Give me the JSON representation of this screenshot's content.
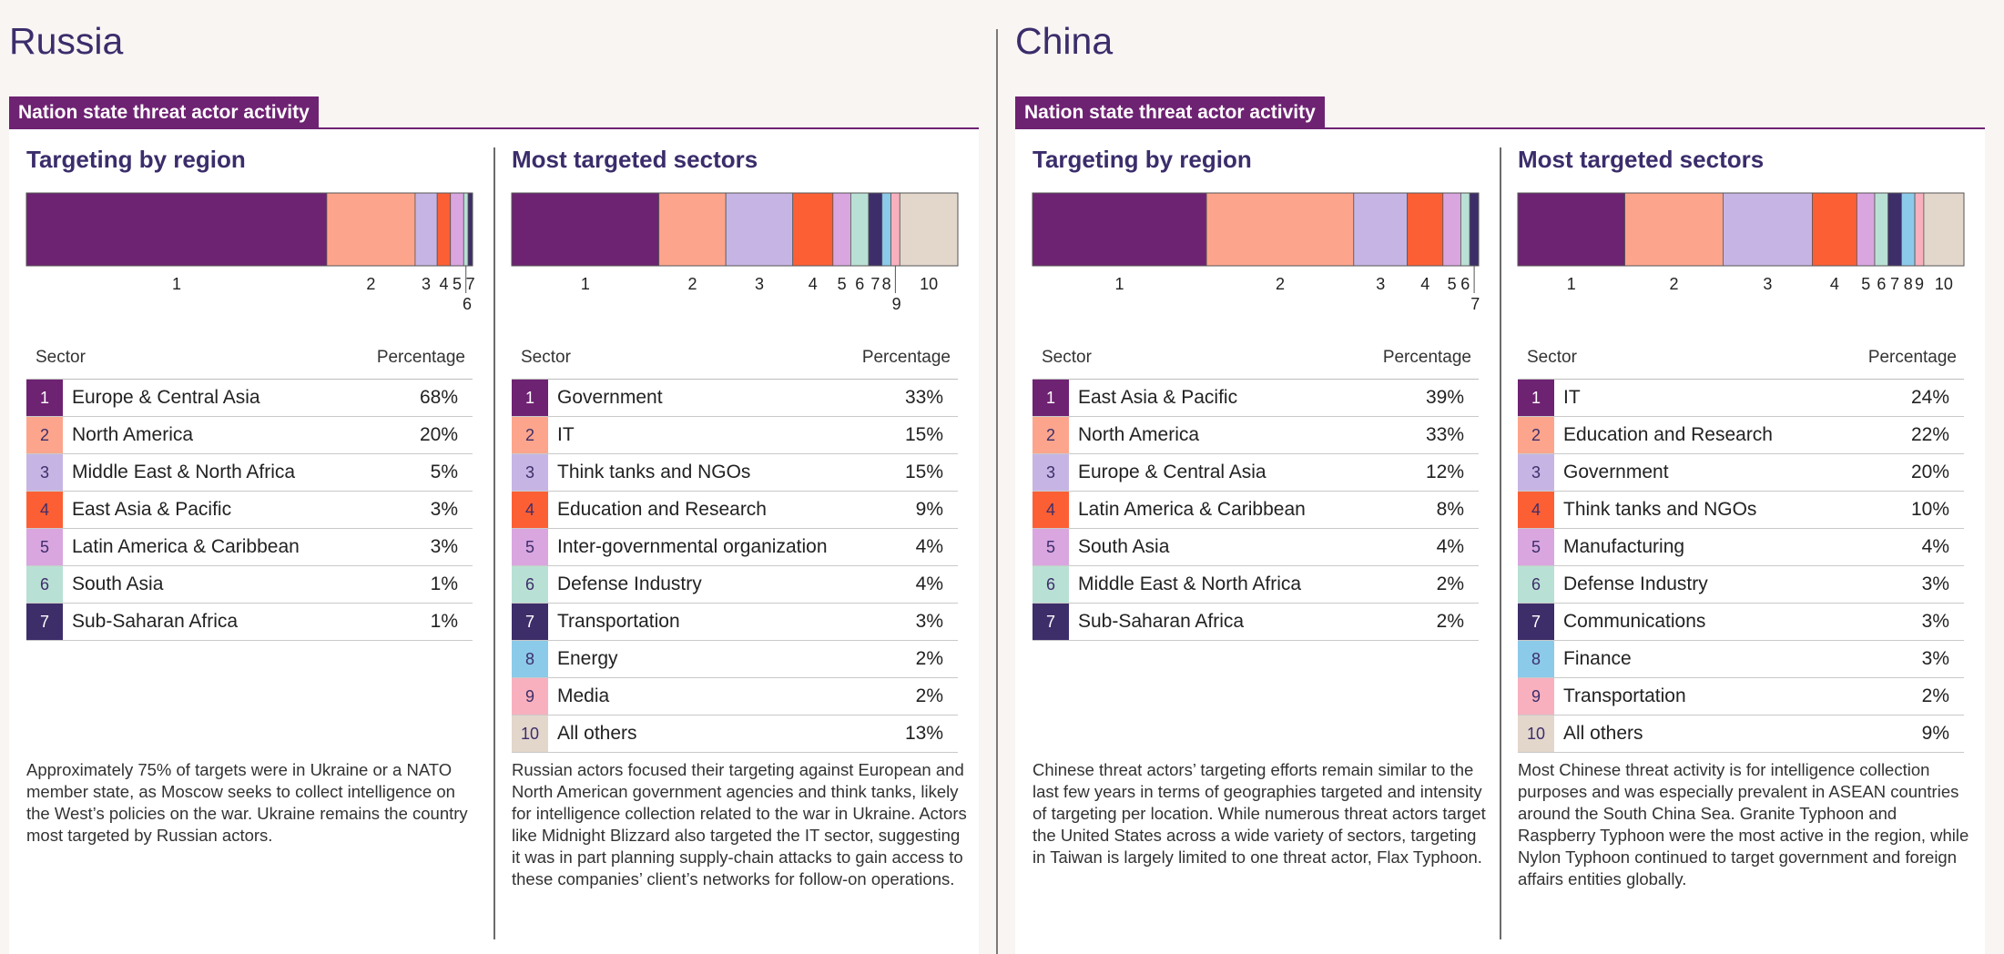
{
  "colors": {
    "c1": "#6e2272",
    "c2": "#fda58c",
    "c3": "#c6b5e4",
    "c4": "#fd5f35",
    "c5": "#d9a6e0",
    "c6": "#b9e0d4",
    "c7": "#3d2e6a",
    "c8": "#8ccaea",
    "c9": "#f8b0be",
    "c10": "#e3d6cb",
    "banner": "#6e2272",
    "heading": "#3b2d6b"
  },
  "panels": [
    {
      "country": "Russia",
      "banner": "Nation state threat actor activity",
      "region": {
        "title": "Targeting by region",
        "header_sector": "Sector",
        "header_pct": "Percentage",
        "rows": [
          {
            "n": "1",
            "label": "Europe & Central Asia",
            "pct": "68%"
          },
          {
            "n": "2",
            "label": "North America",
            "pct": "20%"
          },
          {
            "n": "3",
            "label": "Middle East & North Africa",
            "pct": "5%"
          },
          {
            "n": "4",
            "label": "East Asia & Pacific",
            "pct": "3%"
          },
          {
            "n": "5",
            "label": "Latin America & Caribbean",
            "pct": "3%"
          },
          {
            "n": "6",
            "label": "South Asia",
            "pct": "1%"
          },
          {
            "n": "7",
            "label": "Sub-Saharan Africa",
            "pct": "1%"
          }
        ],
        "note": "Approximately 75% of targets were in Ukraine or a NATO member state, as Moscow seeks to collect intelligence on the West’s policies on the war. Ukraine remains the country most targeted by Russian actors."
      },
      "sector": {
        "title": "Most targeted sectors",
        "header_sector": "Sector",
        "header_pct": "Percentage",
        "rows": [
          {
            "n": "1",
            "label": "Government",
            "pct": "33%"
          },
          {
            "n": "2",
            "label": "IT",
            "pct": "15%"
          },
          {
            "n": "3",
            "label": "Think tanks and NGOs",
            "pct": "15%"
          },
          {
            "n": "4",
            "label": "Education and Research",
            "pct": "9%"
          },
          {
            "n": "5",
            "label": "Inter-governmental organization",
            "pct": "4%"
          },
          {
            "n": "6",
            "label": "Defense Industry",
            "pct": "4%"
          },
          {
            "n": "7",
            "label": "Transportation",
            "pct": "3%"
          },
          {
            "n": "8",
            "label": "Energy",
            "pct": "2%"
          },
          {
            "n": "9",
            "label": "Media",
            "pct": "2%"
          },
          {
            "n": "10",
            "label": "All others",
            "pct": "13%"
          }
        ],
        "note": "Russian actors focused their targeting against European and North American government agencies and think tanks, likely for intelligence collection related to the war in Ukraine. Actors like Midnight Blizzard also targeted the IT sector, suggesting it was in part planning supply-chain attacks to gain access to these companies’ client’s networks for follow-on operations."
      }
    },
    {
      "country": "China",
      "banner": "Nation state threat actor activity",
      "region": {
        "title": "Targeting by region",
        "header_sector": "Sector",
        "header_pct": "Percentage",
        "rows": [
          {
            "n": "1",
            "label": "East Asia & Pacific",
            "pct": "39%"
          },
          {
            "n": "2",
            "label": "North America",
            "pct": "33%"
          },
          {
            "n": "3",
            "label": "Europe & Central Asia",
            "pct": "12%"
          },
          {
            "n": "4",
            "label": "Latin America & Caribbean",
            "pct": "8%"
          },
          {
            "n": "5",
            "label": "South Asia",
            "pct": "4%"
          },
          {
            "n": "6",
            "label": "Middle East & North Africa",
            "pct": "2%"
          },
          {
            "n": "7",
            "label": "Sub-Saharan Africa",
            "pct": "2%"
          }
        ],
        "note": "Chinese threat actors’ targeting efforts remain similar to the last few years in terms of geographies targeted and intensity of targeting per location. While numerous threat actors target the United States across a wide variety of sectors, targeting in Taiwan is largely limited to one threat actor, Flax Typhoon."
      },
      "sector": {
        "title": "Most targeted sectors",
        "header_sector": "Sector",
        "header_pct": "Percentage",
        "rows": [
          {
            "n": "1",
            "label": "IT",
            "pct": "24%"
          },
          {
            "n": "2",
            "label": "Education and Research",
            "pct": "22%"
          },
          {
            "n": "3",
            "label": "Government",
            "pct": "20%"
          },
          {
            "n": "4",
            "label": "Think tanks and NGOs",
            "pct": "10%"
          },
          {
            "n": "5",
            "label": "Manufacturing",
            "pct": "4%"
          },
          {
            "n": "6",
            "label": "Defense Industry",
            "pct": "3%"
          },
          {
            "n": "7",
            "label": "Communications",
            "pct": "3%"
          },
          {
            "n": "8",
            "label": "Finance",
            "pct": "3%"
          },
          {
            "n": "9",
            "label": "Transportation",
            "pct": "2%"
          },
          {
            "n": "10",
            "label": "All others",
            "pct": "9%"
          }
        ],
        "note": "Most Chinese threat activity is for intelligence collection purposes and was especially prevalent in ASEAN countries around the South China Sea. Granite Typhoon and Raspberry Typhoon were the most active in the region, while Nylon Typhoon continued to target government and foreign affairs entities globally."
      }
    }
  ],
  "chart_data": [
    {
      "type": "bar",
      "orientation": "stacked-horizontal",
      "title": "Targeting by region",
      "categories": [
        "1",
        "2",
        "3",
        "4",
        "5",
        "6",
        "7"
      ],
      "values": [
        68,
        20,
        5,
        3,
        3,
        1,
        1
      ]
    },
    {
      "type": "bar",
      "orientation": "stacked-horizontal",
      "title": "Most targeted sectors",
      "categories": [
        "1",
        "2",
        "3",
        "4",
        "5",
        "6",
        "7",
        "8",
        "9",
        "10"
      ],
      "values": [
        33,
        15,
        15,
        9,
        4,
        4,
        3,
        2,
        2,
        13
      ]
    },
    {
      "type": "bar",
      "orientation": "stacked-horizontal",
      "title": "Targeting by region",
      "categories": [
        "1",
        "2",
        "3",
        "4",
        "5",
        "6",
        "7"
      ],
      "values": [
        39,
        33,
        12,
        8,
        4,
        2,
        2
      ]
    },
    {
      "type": "bar",
      "orientation": "stacked-horizontal",
      "title": "Most targeted sectors",
      "categories": [
        "1",
        "2",
        "3",
        "4",
        "5",
        "6",
        "7",
        "8",
        "9",
        "10"
      ],
      "values": [
        24,
        22,
        20,
        10,
        4,
        3,
        3,
        3,
        2,
        9
      ]
    }
  ]
}
